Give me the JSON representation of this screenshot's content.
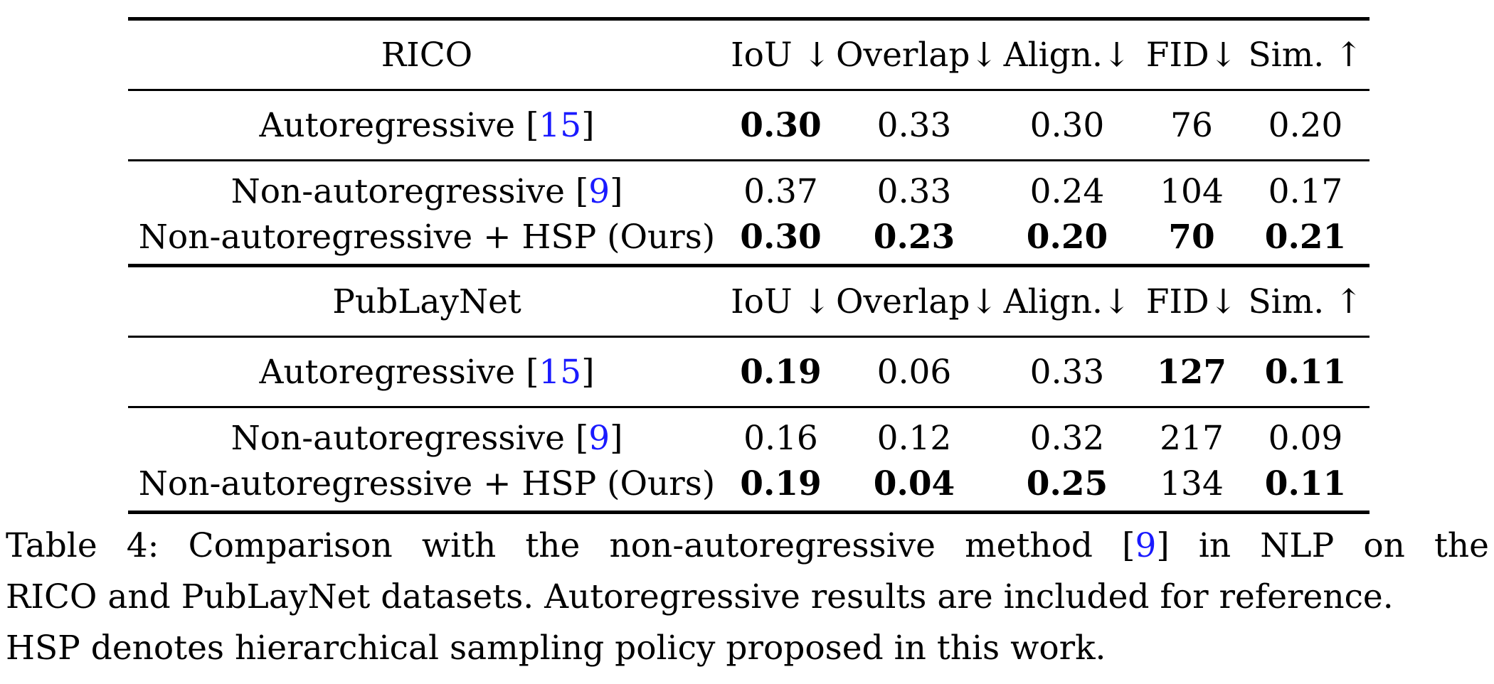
{
  "table": {
    "rico": {
      "dataset_label": "RICO",
      "headers": [
        "IoU ↓",
        "Overlap↓",
        "Align.↓",
        "FID↓",
        "Sim. ↑"
      ],
      "rows": [
        {
          "method": "Autoregressive ",
          "ref": "15",
          "values": [
            "0.30",
            "0.33",
            "0.30",
            "76",
            "0.20"
          ],
          "bold": [
            true,
            false,
            false,
            false,
            false
          ]
        },
        {
          "method": "Non-autoregressive ",
          "ref": "9",
          "values": [
            "0.37",
            "0.33",
            "0.24",
            "104",
            "0.17"
          ],
          "bold": [
            false,
            false,
            false,
            false,
            false
          ]
        },
        {
          "method": "Non-autoregressive + HSP (Ours)",
          "ref": "",
          "values": [
            "0.30",
            "0.23",
            "0.20",
            "70",
            "0.21"
          ],
          "bold": [
            true,
            true,
            true,
            true,
            true
          ]
        }
      ]
    },
    "publaynet": {
      "dataset_label": "PubLayNet",
      "headers": [
        "IoU ↓",
        "Overlap↓",
        "Align.↓",
        "FID↓",
        "Sim. ↑"
      ],
      "rows": [
        {
          "method": "Autoregressive ",
          "ref": "15",
          "values": [
            "0.19",
            "0.06",
            "0.33",
            "127",
            "0.11"
          ],
          "bold": [
            true,
            false,
            false,
            true,
            true
          ]
        },
        {
          "method": "Non-autoregressive ",
          "ref": "9",
          "values": [
            "0.16",
            "0.12",
            "0.32",
            "217",
            "0.09"
          ],
          "bold": [
            false,
            false,
            false,
            false,
            false
          ]
        },
        {
          "method": "Non-autoregressive + HSP (Ours)",
          "ref": "",
          "values": [
            "0.19",
            "0.04",
            "0.25",
            "134",
            "0.11"
          ],
          "bold": [
            true,
            true,
            true,
            false,
            true
          ]
        }
      ]
    }
  },
  "caption": {
    "line1_words": [
      "Table",
      "4:",
      "Comparison",
      "with",
      "the",
      "non-autoregressive",
      "method",
      "[9]",
      "in",
      "NLP",
      "on",
      "the"
    ],
    "line2": "RICO and PubLayNet datasets. Autoregressive results are included for reference.",
    "line3": "HSP denotes hierarchical sampling policy proposed in this work."
  },
  "colors": {
    "reference_link": "#1a1aff",
    "text": "#000000"
  }
}
